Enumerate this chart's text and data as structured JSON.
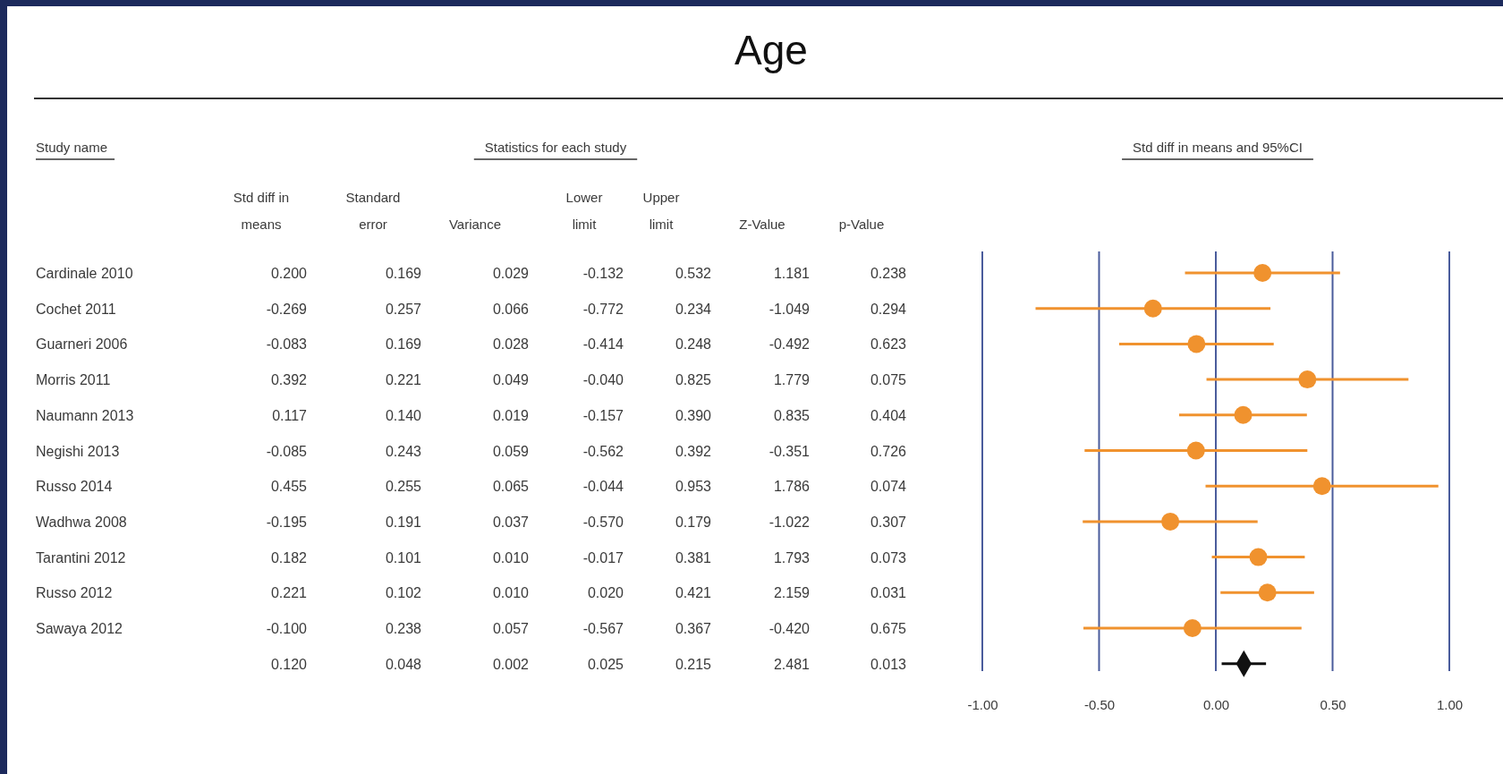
{
  "chart_data": [
    {
      "type": "other",
      "title": "Age",
      "subtitle": "Statistics for each study",
      "ylabel": "Study name",
      "y_categories": [
        "Cardinale 2010",
        "Cochet 2011",
        "Guarneri 2006",
        "Morris 2011",
        "Naumann 2013",
        "Negishi 2013",
        "Russo 2014",
        "Wadhwa 2008",
        "Tarantini 2012",
        "Russo 2012",
        "Sawaya 2012",
        null
      ],
      "categories": [
        "Std diff in means",
        "Standard error",
        "Variance",
        "Lower limit",
        "Upper limit",
        "Z-Value",
        "p-Value"
      ],
      "cell_labels": [
        [
          "0.200",
          "0.169",
          "0.029",
          "-0.132",
          "0.532",
          "1.181",
          "0.238"
        ],
        [
          "-0.269",
          "0.257",
          "0.066",
          "-0.772",
          "0.234",
          "-1.049",
          "0.294"
        ],
        [
          "-0.083",
          "0.169",
          "0.028",
          "-0.414",
          "0.248",
          "-0.492",
          "0.623"
        ],
        [
          "0.392",
          "0.221",
          "0.049",
          "-0.040",
          "0.825",
          "1.779",
          "0.075"
        ],
        [
          "0.117",
          "0.140",
          "0.019",
          "-0.157",
          "0.390",
          "0.835",
          "0.404"
        ],
        [
          "-0.085",
          "0.243",
          "0.059",
          "-0.562",
          "0.392",
          "-0.351",
          "0.726"
        ],
        [
          "0.455",
          "0.255",
          "0.065",
          "-0.044",
          "0.953",
          "1.786",
          "0.074"
        ],
        [
          "-0.195",
          "0.191",
          "0.037",
          "-0.570",
          "0.179",
          "-1.022",
          "0.307"
        ],
        [
          "0.182",
          "0.101",
          "0.010",
          "-0.017",
          "0.381",
          "1.793",
          "0.073"
        ],
        [
          "0.221",
          "0.102",
          "0.010",
          "0.020",
          "0.421",
          "2.159",
          "0.031"
        ],
        [
          "-0.100",
          "0.238",
          "0.057",
          "-0.567",
          "0.367",
          "-0.420",
          "0.675"
        ],
        [
          "0.120",
          "0.048",
          "0.002",
          "0.025",
          "0.215",
          "2.481",
          "0.013"
        ]
      ]
    },
    {
      "type": "scatter",
      "orientation": "horizontal",
      "title": "Std diff in means and 95%CI",
      "categories": [
        null,
        null,
        null,
        null,
        null,
        null,
        null,
        null,
        null,
        null,
        null,
        null
      ],
      "tick_labels": "x",
      "grid": "x",
      "xlim": [
        -1,
        1
      ],
      "xticks": [
        {
          "value": -1,
          "label": "-1.00"
        },
        {
          "value": -0.5,
          "label": "-0.50"
        },
        {
          "value": 0,
          "label": "0.00"
        },
        {
          "value": 0.5,
          "label": "0.50"
        },
        {
          "value": 1,
          "label": "1.00"
        }
      ],
      "series": [
        {
          "color": "#f0922e",
          "marker": "circle",
          "values": [
            0.2,
            -0.269,
            -0.083,
            0.392,
            0.117,
            -0.085,
            0.455,
            -0.195,
            0.182,
            0.221,
            -0.1,
            null
          ],
          "errors": [
            [
              -0.132,
              0.532
            ],
            [
              -0.772,
              0.234
            ],
            [
              -0.414,
              0.248
            ],
            [
              -0.04,
              0.825
            ],
            [
              -0.157,
              0.39
            ],
            [
              -0.562,
              0.392
            ],
            [
              -0.044,
              0.953
            ],
            [
              -0.57,
              0.179
            ],
            [
              -0.017,
              0.381
            ],
            [
              0.02,
              0.421
            ],
            [
              -0.567,
              0.367
            ],
            null
          ]
        },
        {
          "color": "#111111",
          "marker": "diamond",
          "values": [
            null,
            null,
            null,
            null,
            null,
            null,
            null,
            null,
            null,
            null,
            null,
            0.12
          ],
          "errors": [
            null,
            null,
            null,
            null,
            null,
            null,
            null,
            null,
            null,
            null,
            null,
            [
              0.025,
              0.215
            ]
          ]
        }
      ]
    }
  ]
}
